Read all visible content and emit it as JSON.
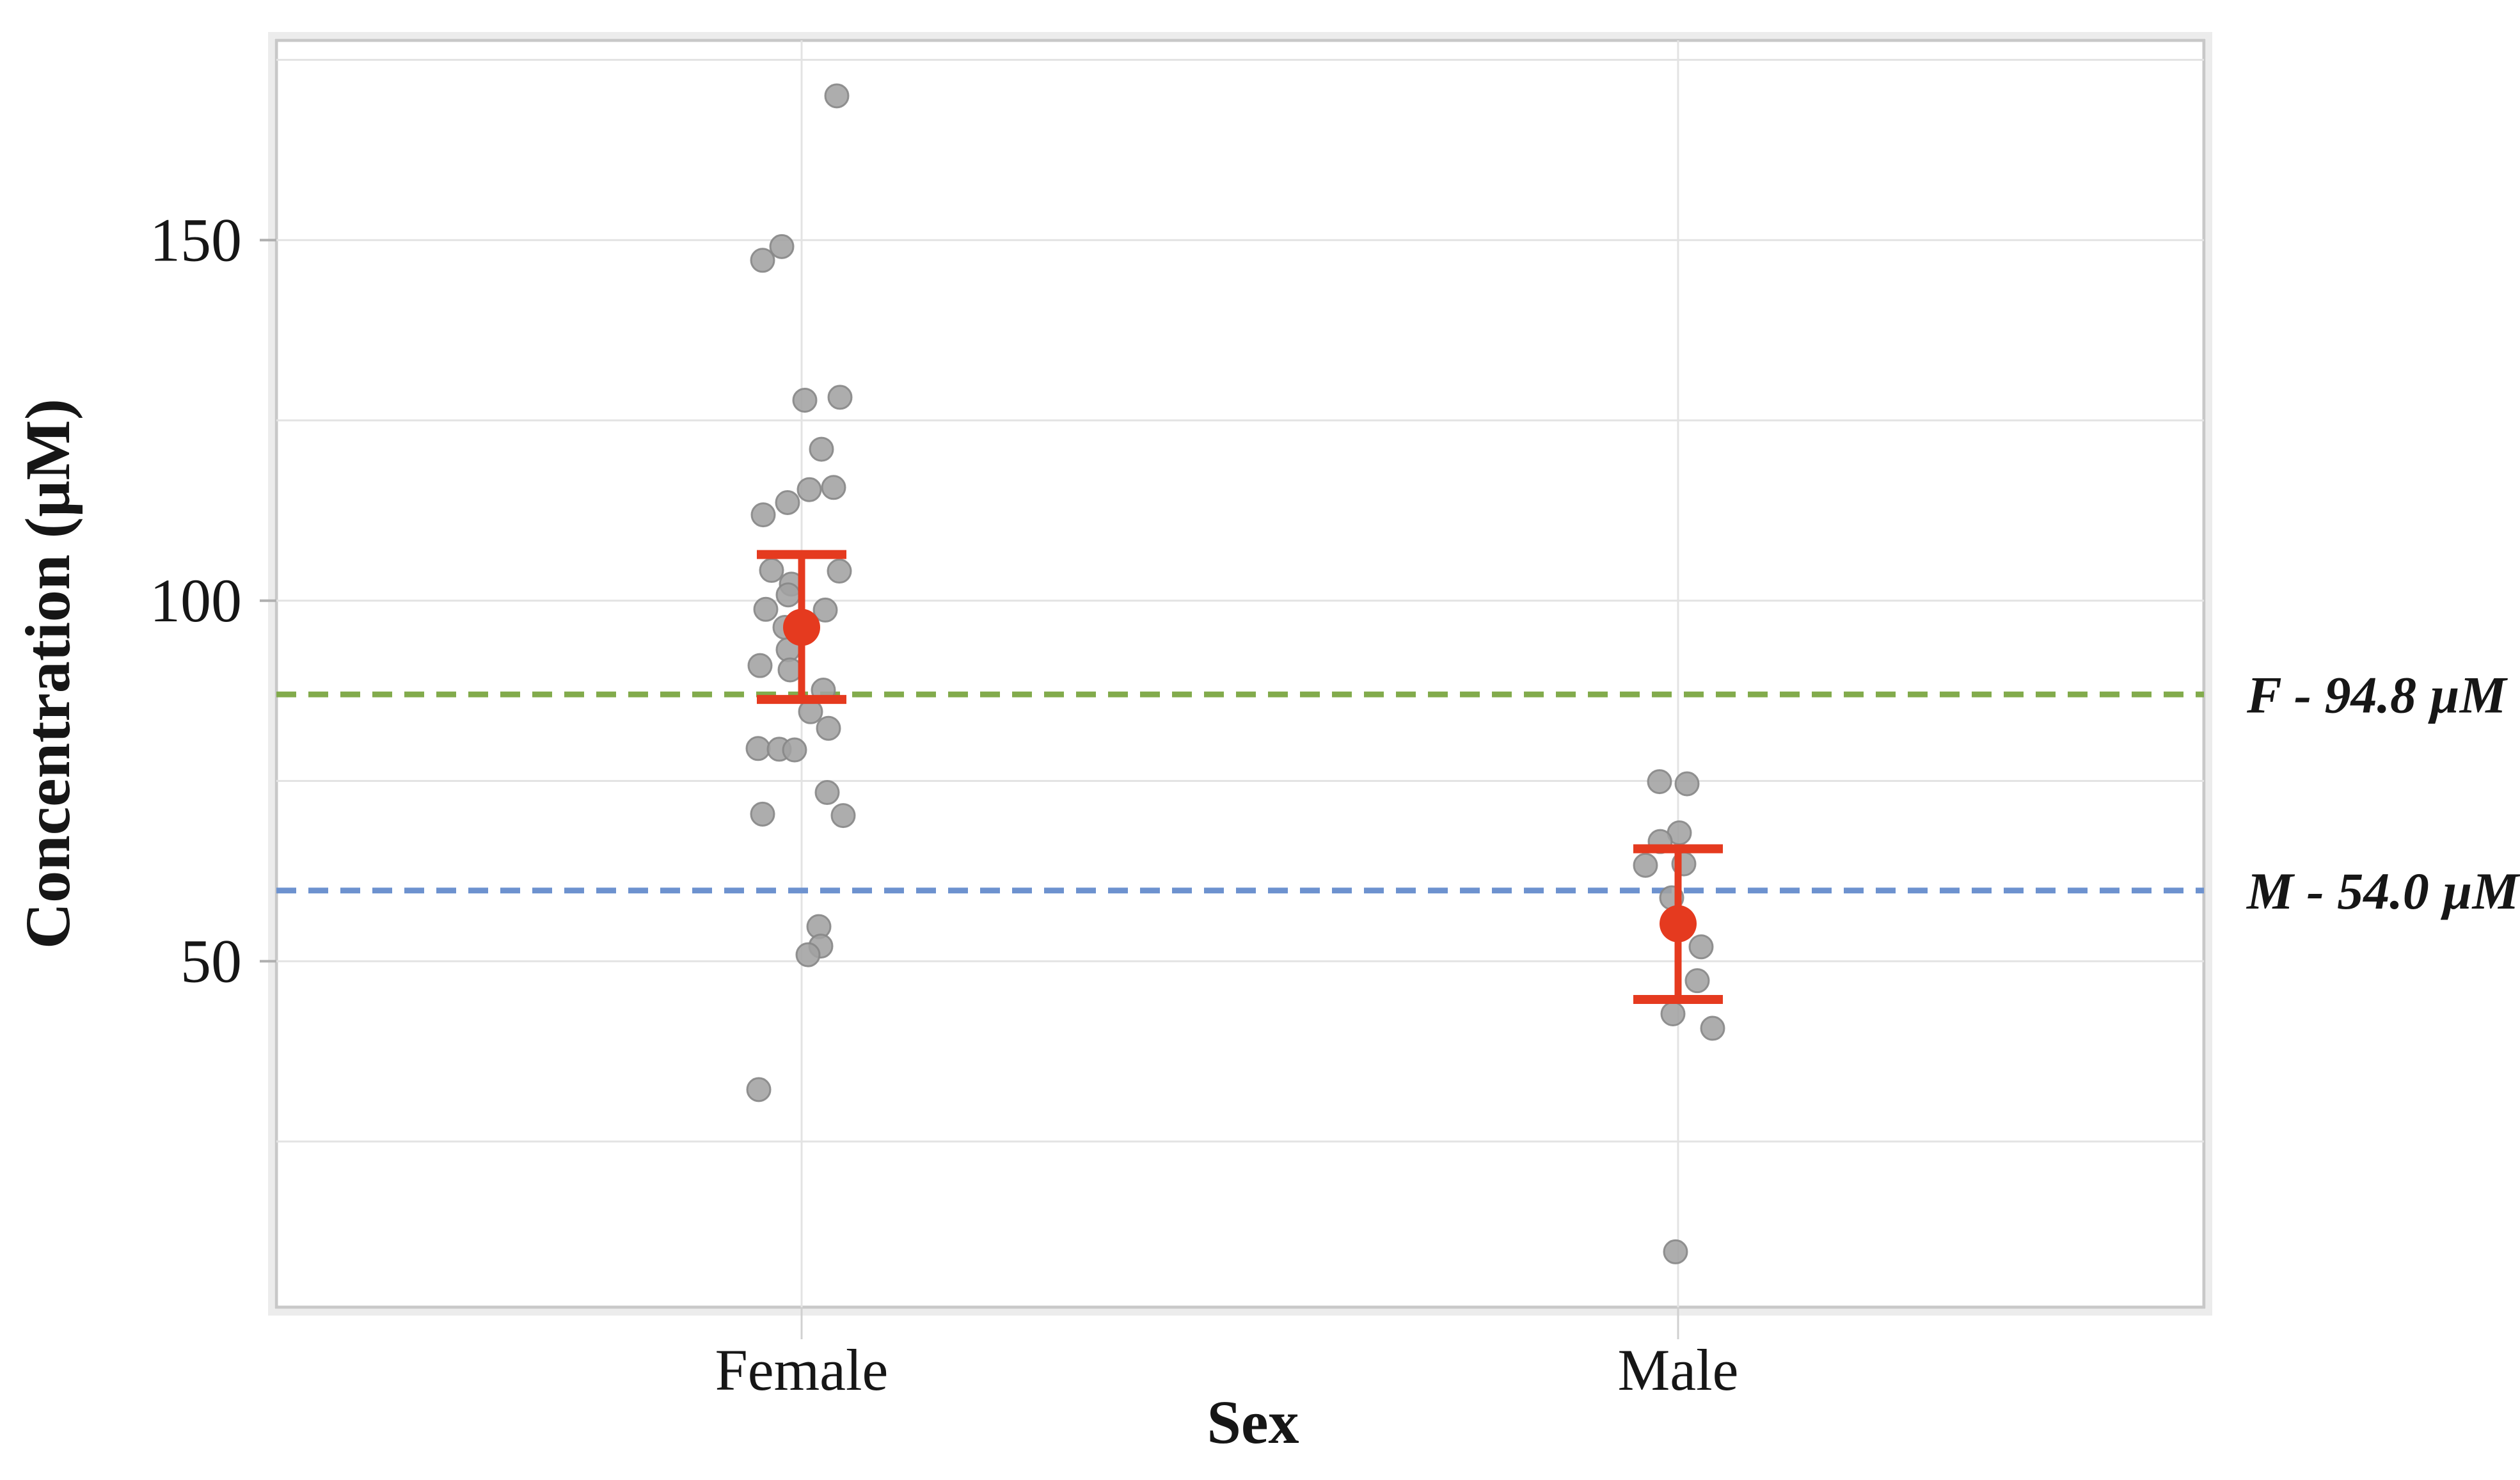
{
  "chart_data": {
    "type": "scatter",
    "subtype": "jitter-strip-plot",
    "title": "",
    "xlabel": "Sex",
    "ylabel": "Concentration (µM)",
    "categories": [
      "Female",
      "Male"
    ],
    "y_ticks": [
      150,
      100,
      50
    ],
    "y_gridlines": [
      175,
      150,
      125,
      100,
      75,
      50,
      25
    ],
    "ylim": [
      2,
      178
    ],
    "legend": "none",
    "grid": "on",
    "series": [
      {
        "name": "Female",
        "points": [
          {
            "v": 170.0,
            "j": 55
          },
          {
            "v": 149.1,
            "j": -31
          },
          {
            "v": 147.2,
            "j": -61
          },
          {
            "v": 128.2,
            "j": 60
          },
          {
            "v": 127.8,
            "j": 5
          },
          {
            "v": 121.0,
            "j": 31
          },
          {
            "v": 115.7,
            "j": 50
          },
          {
            "v": 115.4,
            "j": 12
          },
          {
            "v": 113.6,
            "j": -22
          },
          {
            "v": 111.9,
            "j": -60
          },
          {
            "v": 104.2,
            "j": -47
          },
          {
            "v": 104.1,
            "j": 59
          },
          {
            "v": 102.3,
            "j": -16
          },
          {
            "v": 100.8,
            "j": -21
          },
          {
            "v": 98.8,
            "j": -56
          },
          {
            "v": 98.7,
            "j": 37
          },
          {
            "v": 96.3,
            "j": -26
          },
          {
            "v": 93.2,
            "j": -21
          },
          {
            "v": 91.0,
            "j": -65
          },
          {
            "v": 90.4,
            "j": -18
          },
          {
            "v": 87.6,
            "j": 34
          },
          {
            "v": 84.6,
            "j": 14
          },
          {
            "v": 82.3,
            "j": 42
          },
          {
            "v": 79.5,
            "j": -68
          },
          {
            "v": 79.4,
            "j": -35
          },
          {
            "v": 79.3,
            "j": -11
          },
          {
            "v": 73.4,
            "j": 40
          },
          {
            "v": 70.4,
            "j": -61
          },
          {
            "v": 70.2,
            "j": 65
          },
          {
            "v": 54.8,
            "j": 27
          },
          {
            "v": 52.1,
            "j": 30
          },
          {
            "v": 50.9,
            "j": 10
          },
          {
            "v": 32.2,
            "j": -67
          }
        ]
      },
      {
        "name": "Male",
        "points": [
          {
            "v": 74.9,
            "j": -29
          },
          {
            "v": 74.6,
            "j": 14
          },
          {
            "v": 67.8,
            "j": 2
          },
          {
            "v": 66.6,
            "j": -28
          },
          {
            "v": 63.5,
            "j": 9
          },
          {
            "v": 63.3,
            "j": -51
          },
          {
            "v": 58.8,
            "j": -10
          },
          {
            "v": 52.0,
            "j": 36
          },
          {
            "v": 47.3,
            "j": 30
          },
          {
            "v": 42.7,
            "j": -8
          },
          {
            "v": 40.7,
            "j": 54
          },
          {
            "v": 9.7,
            "j": -4
          }
        ]
      }
    ],
    "summary_stats": [
      {
        "category": "Female",
        "mean": 96.3,
        "upper": 106.4,
        "lower": 86.3
      },
      {
        "category": "Male",
        "mean": 55.2,
        "upper": 65.6,
        "lower": 44.7
      }
    ],
    "reference_lines": [
      {
        "label": "F - 94.8 µM",
        "label_value": 94.8,
        "line_y_value": 87.0,
        "color": "#82ab4c"
      },
      {
        "label": "M - 54.0 µM",
        "label_value": 54.0,
        "line_y_value": 59.8,
        "color": "#6d92cf"
      }
    ],
    "colors": {
      "point_fill": "#a2a2a2",
      "point_edge": "#878787",
      "mean_marker": "#e53a1f",
      "gridline": "#e3e3e3",
      "plot_border": "#c8c8c8",
      "tick": "#b0b0b0",
      "text": "#161616"
    }
  }
}
